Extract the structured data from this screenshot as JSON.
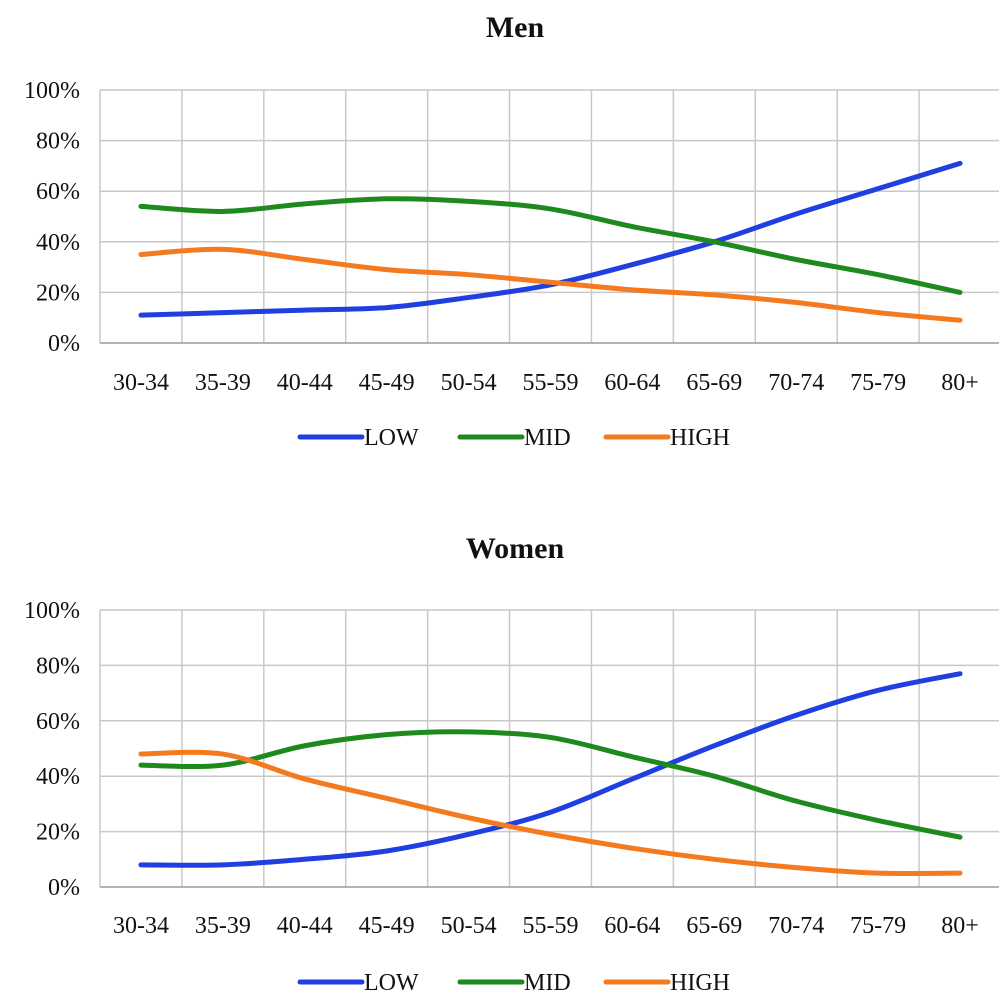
{
  "chart_data": [
    {
      "type": "line",
      "title": "Men",
      "categories": [
        "30-34",
        "35-39",
        "40-44",
        "45-49",
        "50-54",
        "55-59",
        "60-64",
        "65-69",
        "70-74",
        "75-79",
        "80+"
      ],
      "y_ticks": [
        "0%",
        "20%",
        "40%",
        "60%",
        "80%",
        "100%"
      ],
      "ylim": [
        0,
        100
      ],
      "grid": true,
      "legend_position": "bottom",
      "series": [
        {
          "name": "LOW",
          "color": "#1f3fe0",
          "values": [
            11,
            12,
            13,
            14,
            18,
            23,
            31,
            40,
            51,
            61,
            71
          ]
        },
        {
          "name": "MID",
          "color": "#1e8a1e",
          "values": [
            54,
            52,
            55,
            57,
            56,
            53,
            46,
            40,
            33,
            27,
            20
          ]
        },
        {
          "name": "HIGH",
          "color": "#f47a20",
          "values": [
            35,
            37,
            33,
            29,
            27,
            24,
            21,
            19,
            16,
            12,
            9
          ]
        }
      ]
    },
    {
      "type": "line",
      "title": "Women",
      "categories": [
        "30-34",
        "35-39",
        "40-44",
        "45-49",
        "50-54",
        "55-59",
        "60-64",
        "65-69",
        "70-74",
        "75-79",
        "80+"
      ],
      "y_ticks": [
        "0%",
        "20%",
        "40%",
        "60%",
        "80%",
        "100%"
      ],
      "ylim": [
        0,
        100
      ],
      "grid": true,
      "legend_position": "bottom",
      "series": [
        {
          "name": "LOW",
          "color": "#1f3fe0",
          "values": [
            8,
            8,
            10,
            13,
            19,
            27,
            39,
            51,
            62,
            71,
            77
          ]
        },
        {
          "name": "MID",
          "color": "#1e8a1e",
          "values": [
            44,
            44,
            51,
            55,
            56,
            54,
            47,
            40,
            31,
            24,
            18
          ]
        },
        {
          "name": "HIGH",
          "color": "#f47a20",
          "values": [
            48,
            48,
            39,
            32,
            25,
            19,
            14,
            10,
            7,
            5,
            5
          ]
        }
      ]
    }
  ]
}
